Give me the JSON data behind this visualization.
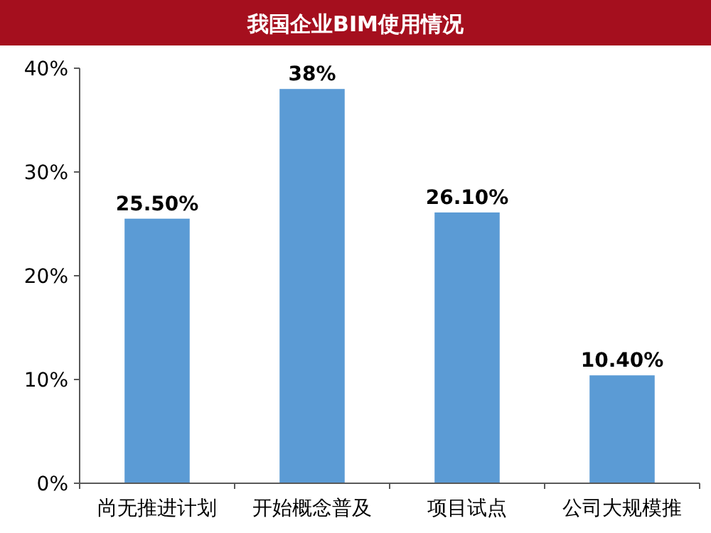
{
  "chart_data": {
    "type": "bar",
    "title": "我国企业BIM使用情况",
    "categories": [
      "尚无推进计划",
      "开始概念普及",
      "项目试点",
      "公司大规模推"
    ],
    "values": [
      25.5,
      38,
      26.1,
      10.4
    ],
    "value_labels": [
      "25.50%",
      "38%",
      "26.10%",
      "10.40%"
    ],
    "color": "#5b9bd5",
    "ylim": [
      0,
      40
    ],
    "yticks": [
      {
        "value": 0,
        "label": "0%"
      },
      {
        "value": 10,
        "label": "10%"
      },
      {
        "value": 20,
        "label": "20%"
      },
      {
        "value": 30,
        "label": "30%"
      },
      {
        "value": 40,
        "label": "40%"
      }
    ],
    "grid": false
  }
}
